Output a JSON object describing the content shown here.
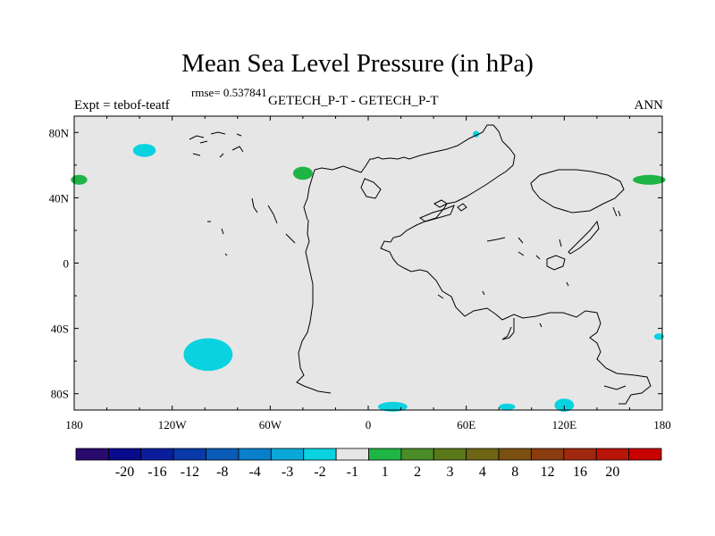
{
  "title": "Mean Sea Level Pressure (in hPa)",
  "rmse_text": "rmse= 0.537841",
  "left_label": "Expt = tebof-teatf",
  "center_label": "GETECH_P-T - GETECH_P-T",
  "right_label": "ANN",
  "colors": {
    "ocean_background": "#e6e6e6",
    "coastline": "#000000",
    "neg_cyan": "#0ad2e0",
    "pos_green": "#1fb446"
  },
  "map": {
    "lon_range": [
      -180,
      180
    ],
    "lat_range": [
      -90,
      90
    ],
    "x_ticks": [
      {
        "value": -180,
        "label": "180"
      },
      {
        "value": -120,
        "label": "120W"
      },
      {
        "value": -60,
        "label": "60W"
      },
      {
        "value": 0,
        "label": "0"
      },
      {
        "value": 60,
        "label": "60E"
      },
      {
        "value": 120,
        "label": "120E"
      },
      {
        "value": 180,
        "label": "180"
      }
    ],
    "y_ticks": [
      {
        "value": 80,
        "label": "80N"
      },
      {
        "value": 40,
        "label": "40N"
      },
      {
        "value": 0,
        "label": "0"
      },
      {
        "value": -40,
        "label": "40S"
      },
      {
        "value": -80,
        "label": "80S"
      }
    ],
    "anomaly_regions": [
      {
        "name": "anomaly-cyan-north-pacific",
        "color": "neg_cyan",
        "lon": -137,
        "lat": 69,
        "rlon": 7,
        "rlat": 4
      },
      {
        "name": "anomaly-cyan-south-pacific",
        "color": "neg_cyan",
        "lon": -98,
        "lat": -56,
        "rlon": 15,
        "rlat": 10
      },
      {
        "name": "anomaly-cyan-arctic-small",
        "color": "neg_cyan",
        "lon": 66,
        "lat": 79,
        "rlon": 2,
        "rlat": 2
      },
      {
        "name": "anomaly-cyan-east-south",
        "color": "neg_cyan",
        "lon": 178,
        "lat": -45,
        "rlon": 3,
        "rlat": 2
      },
      {
        "name": "anomaly-cyan-antarctic-1",
        "color": "neg_cyan",
        "lon": 15,
        "lat": -88,
        "rlon": 9,
        "rlat": 3
      },
      {
        "name": "anomaly-cyan-antarctic-2",
        "color": "neg_cyan",
        "lon": 85,
        "lat": -88,
        "rlon": 5,
        "rlat": 2
      },
      {
        "name": "anomaly-cyan-antarctic-3",
        "color": "neg_cyan",
        "lon": 120,
        "lat": -87,
        "rlon": 6,
        "rlat": 4
      },
      {
        "name": "anomaly-green-west-edge",
        "color": "pos_green",
        "lon": -177,
        "lat": 51,
        "rlon": 5,
        "rlat": 3
      },
      {
        "name": "anomaly-green-atlantic",
        "color": "pos_green",
        "lon": -40,
        "lat": 55,
        "rlon": 6,
        "rlat": 4
      },
      {
        "name": "anomaly-green-east-edge",
        "color": "pos_green",
        "lon": 172,
        "lat": 51,
        "rlon": 10,
        "rlat": 3
      }
    ]
  },
  "colorbar": {
    "colors": [
      "#2a0a6e",
      "#0a0a8c",
      "#0a1e9c",
      "#0a3aaa",
      "#0a5ab8",
      "#0a80cc",
      "#0aa8d8",
      "#0ad2e0",
      "#e6e6e6",
      "#1fb446",
      "#4a8c28",
      "#5a7818",
      "#6e6414",
      "#7a5010",
      "#8a3c10",
      "#a02810",
      "#b81408",
      "#c80000"
    ],
    "labels": [
      "-20",
      "-16",
      "-12",
      "-8",
      "-4",
      "-3",
      "-2",
      "-1",
      "1",
      "2",
      "3",
      "4",
      "8",
      "12",
      "16",
      "20"
    ]
  }
}
